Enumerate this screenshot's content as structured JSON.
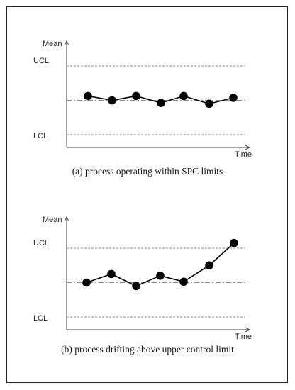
{
  "chart_data": [
    {
      "type": "line",
      "ylabel": "Mean",
      "xlabel": "Time",
      "limits": {
        "upper": "UCL",
        "lower": "LCL"
      },
      "caption": "(a) process operating within SPC limits",
      "ylim": [
        0,
        10
      ],
      "reference_levels": {
        "ucl": 9,
        "center": 5,
        "lcl": 1
      },
      "x": [
        1,
        2,
        3,
        4,
        5,
        6,
        7
      ],
      "values": [
        5.5,
        5.0,
        5.5,
        4.7,
        5.5,
        4.6,
        5.3
      ],
      "colors": {
        "line": "#000000",
        "marker": "#000000",
        "reference": "#888888",
        "axis": "#444444"
      }
    },
    {
      "type": "line",
      "ylabel": "Mean",
      "xlabel": "Time",
      "limits": {
        "upper": "UCL",
        "lower": "LCL"
      },
      "caption": "(b) process drifting above upper control limit",
      "ylim": [
        0,
        10
      ],
      "reference_levels": {
        "ucl": 9,
        "center": 5,
        "lcl": 1
      },
      "x": [
        1,
        2,
        3,
        4,
        5,
        6,
        7
      ],
      "values": [
        5.0,
        6.0,
        4.6,
        5.8,
        5.1,
        7.0,
        9.6
      ],
      "colors": {
        "line": "#000000",
        "marker": "#000000",
        "reference": "#888888",
        "axis": "#444444"
      }
    }
  ]
}
